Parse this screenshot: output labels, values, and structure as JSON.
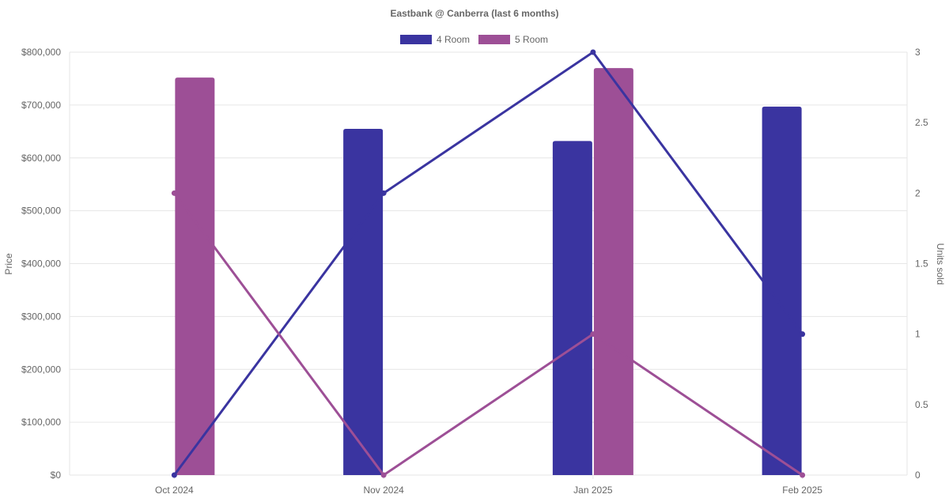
{
  "chart_data": {
    "type": "bar+line",
    "title": "Eastbank @ Canberra (last 6 months)",
    "categories": [
      "Oct 2024",
      "Nov 2024",
      "Jan 2025",
      "Feb 2025"
    ],
    "y_left": {
      "label": "Price",
      "range": [
        0,
        800000
      ],
      "ticks": [
        "$0",
        "$100,000",
        "$200,000",
        "$300,000",
        "$400,000",
        "$500,000",
        "$600,000",
        "$700,000",
        "$800,000"
      ]
    },
    "y_right": {
      "label": "Units sold",
      "range": [
        0,
        3
      ],
      "ticks": [
        "0",
        "0.5",
        "1",
        "1.5",
        "2",
        "2.5",
        "3"
      ]
    },
    "grid": true,
    "legend_position": "top-center",
    "series": [
      {
        "name": "4 Room",
        "color": "#3a34a0",
        "price": [
          null,
          655000,
          632000,
          697000
        ],
        "units_sold": [
          0,
          2,
          3,
          1
        ]
      },
      {
        "name": "5 Room",
        "color": "#9d4f96",
        "price": [
          752000,
          null,
          770000,
          null
        ],
        "units_sold": [
          2,
          0,
          1,
          0
        ]
      }
    ]
  }
}
